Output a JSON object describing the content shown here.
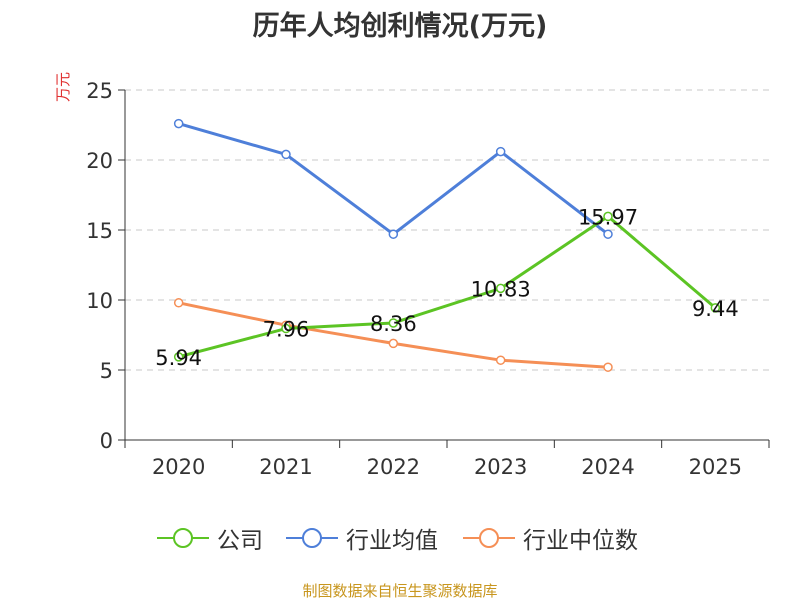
{
  "chart_data": {
    "type": "line",
    "title": "历年人均创利情况(万元)",
    "ylabel": "万元",
    "xlabel": "",
    "categories": [
      "2020",
      "2021",
      "2022",
      "2023",
      "2024",
      "2025"
    ],
    "ylim": [
      0,
      25
    ],
    "yticks": [
      0,
      5,
      10,
      15,
      20,
      25
    ],
    "grid": true,
    "legend_position": "bottom",
    "series": [
      {
        "name": "公司",
        "color": "#5cc424",
        "values": [
          5.94,
          7.96,
          8.36,
          10.83,
          15.97,
          9.44
        ],
        "labels": [
          "5.94",
          "7.96",
          "8.36",
          "10.83",
          "15.97",
          "9.44"
        ]
      },
      {
        "name": "行业均值",
        "color": "#4e7fd9",
        "values": [
          22.6,
          20.4,
          14.7,
          20.6,
          14.7,
          null
        ]
      },
      {
        "name": "行业中位数",
        "color": "#f58f56",
        "values": [
          9.8,
          8.2,
          6.9,
          5.7,
          5.2,
          null
        ]
      }
    ]
  },
  "source": "制图数据来自恒生聚源数据库"
}
